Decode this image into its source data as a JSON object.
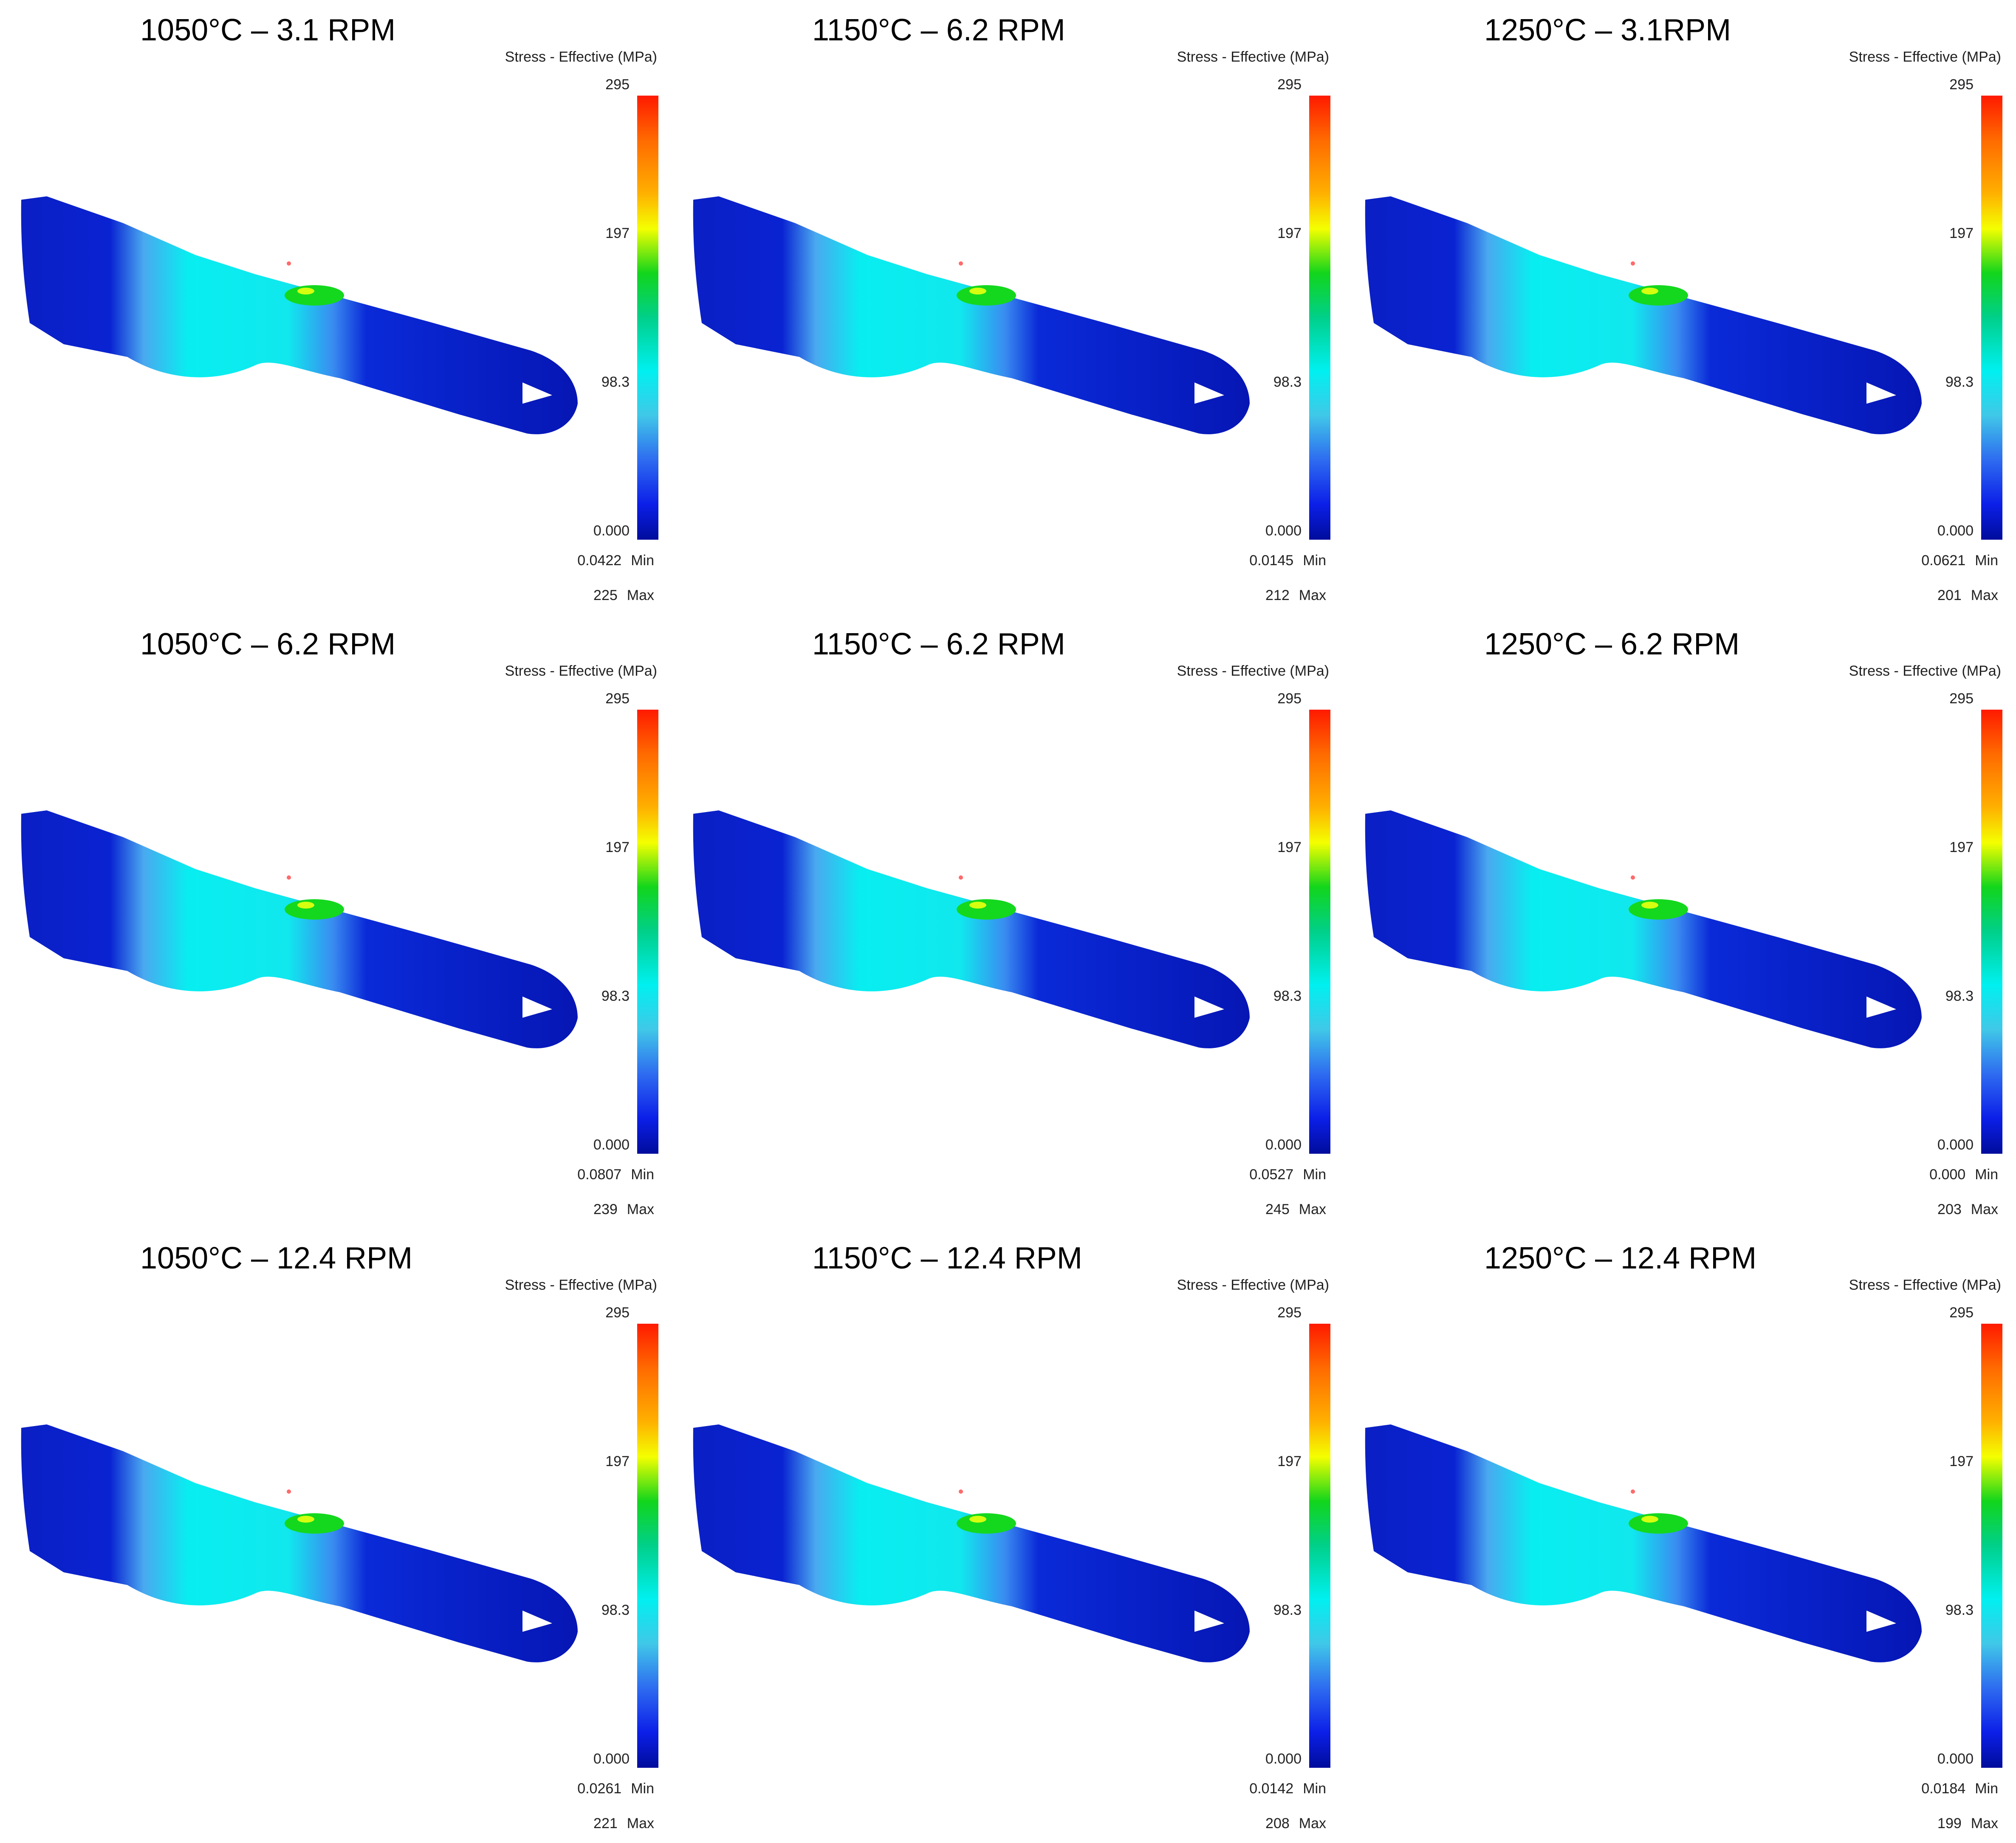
{
  "legend_title": "Stress - Effective (MPa)",
  "ticks": [
    "295",
    "197",
    "98.3",
    "0.000"
  ],
  "min_label": "Min",
  "max_label": "Max",
  "colors": {
    "max_red": "#ff1a00",
    "green": "#12d51c",
    "cyan": "#00f0f0",
    "blue": "#0c1fe8",
    "min_navy": "#000c9c"
  },
  "panels": [
    {
      "title": "1050°C – 3.1 RPM",
      "min": "0.0422",
      "max": "225"
    },
    {
      "title": "1150°C – 6.2 RPM",
      "min": "0.0145",
      "max": "212"
    },
    {
      "title": "1250°C – 3.1RPM",
      "min": "0.0621",
      "max": "201"
    },
    {
      "title": "1050°C – 6.2 RPM",
      "min": "0.0807",
      "max": "239"
    },
    {
      "title": "1150°C – 6.2 RPM",
      "min": "0.0527",
      "max": "245"
    },
    {
      "title": "1250°C – 6.2 RPM",
      "min": "0.000",
      "max": "203"
    },
    {
      "title": "1050°C – 12.4 RPM",
      "min": "0.0261",
      "max": "221"
    },
    {
      "title": "1150°C – 12.4 RPM",
      "min": "0.0142",
      "max": "208"
    },
    {
      "title": "1250°C – 12.4 RPM",
      "min": "0.0184",
      "max": "199"
    }
  ]
}
